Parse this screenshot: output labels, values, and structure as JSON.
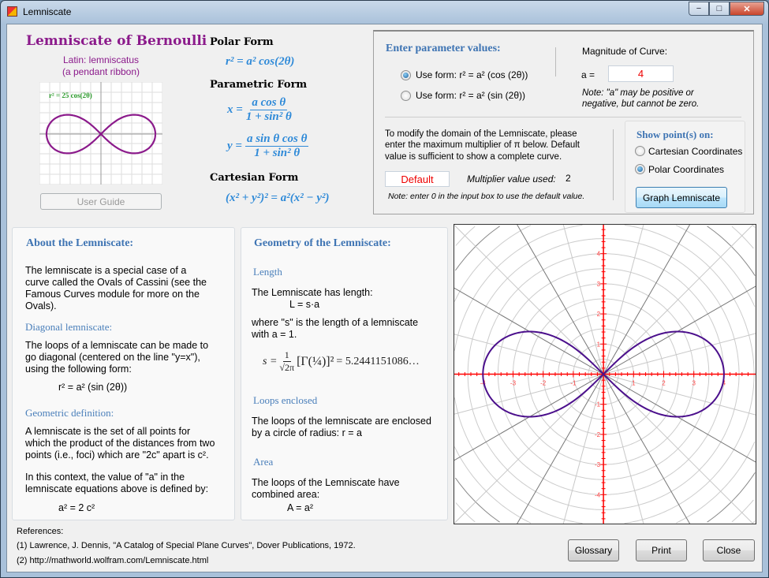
{
  "window": {
    "title": "Lemniscate",
    "minimize": "−",
    "maximize": "□",
    "close": "✕"
  },
  "intro": {
    "title": "Lemniscate of Bernoulli",
    "latin": "Latin: lemniscatus",
    "meaning": "(a pendant ribbon)",
    "thumbnail_label": "r² = 25 cos(2θ)",
    "user_guide": "User Guide"
  },
  "forms": {
    "polar_title": "Polar Form",
    "polar": "r² = a² cos(2θ)",
    "parametric_title": "Parametric Form",
    "x_lhs": "x =",
    "x_num": "a  cos θ",
    "x_den": "1 + sin² θ",
    "y_lhs": "y =",
    "y_num": "a  sin θ  cos θ",
    "y_den": "1 + sin² θ",
    "cartesian_title": "Cartesian Form",
    "cartesian": "(x² + y²)² = a²(x² − y²)"
  },
  "params": {
    "title": "Enter parameter values:",
    "form_cos": "Use form:  r² = a² (cos (2θ))",
    "form_sin": "Use form:  r² = a² (sin (2θ))",
    "selected_form": "cos",
    "magnitude_label": "Magnitude of Curve:",
    "a_label": "a =",
    "a_value": "4",
    "a_note1": "Note: \"a\" may be positive or",
    "a_note2": "negative, but cannot be zero.",
    "domain_text1": "To modify the domain of the Lemniscate, please",
    "domain_text2": "enter the maximum multiplier of π below.  Default",
    "domain_text3": "value is sufficient to show a complete curve.",
    "multiplier_input": "Default",
    "multiplier_label": "Multiplier value used:",
    "multiplier_value": "2",
    "multiplier_note": "Note: enter 0 in the input box to use the default value.",
    "show_title": "Show point(s) on:",
    "opt_cartesian": "Cartesian Coordinates",
    "opt_polar": "Polar Coordinates",
    "selected_coords": "polar",
    "graph_button": "Graph Lemniscate"
  },
  "about": {
    "title": "About the Lemniscate:",
    "p1": [
      "The lemniscate is a special case of a",
      "curve called the Ovals of Cassini (see the",
      "Famous Curves module for more on the",
      "Ovals)."
    ],
    "diag_title": "Diagonal lemniscate:",
    "p2": [
      "The loops of a lemniscate can be made to",
      "go diagonal (centered on the line  \"y=x\"),",
      "using the following form:"
    ],
    "diag_formula": "r² = a² (sin (2θ))",
    "geo_title": "Geometric definition:",
    "p3": [
      "A lemniscate is the set of all points for",
      "which the product of the distances from two",
      "points (i.e., foci) which are \"2c\" apart is c²."
    ],
    "p4": [
      "In this context, the value of \"a\" in the",
      "lemniscate equations above is defined by:"
    ],
    "a_formula": "a² = 2 c²"
  },
  "geometry": {
    "title": "Geometry of the Lemniscate:",
    "length_title": "Length",
    "length_text": "The Lemniscate has length:",
    "length_formula": "L = s·a",
    "s_text": [
      "where \"s\" is the length of a lemniscate",
      "with a = 1."
    ],
    "s_lhs": "s =",
    "s_num": "1",
    "s_den": "√2π",
    "s_gamma": "[Γ(¼)]²",
    "s_value": "= 5.2441151086…",
    "loops_title": "Loops enclosed",
    "loops_text": [
      "The loops of the lemniscate are enclosed",
      "by a circle of radius:  r = a"
    ],
    "area_title": "Area",
    "area_text": [
      "The loops of the Lemniscate have",
      "combined area:"
    ],
    "area_formula": "A = a²"
  },
  "references": {
    "title": "References:",
    "ref1": "(1) Lawrence, J. Dennis, \"A Catalog of Special Plane Curves\", Dover Publications, 1972.",
    "ref2": "(2) http://mathworld.wolfram.com/Lemniscate.html"
  },
  "buttons": {
    "glossary": "Glossary",
    "print": "Print",
    "close": "Close"
  },
  "colors": {
    "curve": "#4b0f8c",
    "axis": "#ff0000",
    "title": "#8b1a8b",
    "math": "#2f8ad8"
  },
  "chart_data": {
    "type": "line",
    "coordinate_system": "polar",
    "equation": "r² = a² cos(2θ)",
    "a": 4,
    "theta_range_multiplier_of_pi": 2,
    "xlim": [
      -4.95,
      5.05
    ],
    "ylim": [
      -4.95,
      4.95
    ],
    "x_ticks": [
      -4,
      -3,
      -2,
      -1,
      1,
      2,
      3,
      4
    ],
    "y_ticks": [
      -4,
      -3,
      -2,
      -1,
      1,
      2,
      3,
      4
    ],
    "minor_tick_step": 0.2,
    "grid": "polar",
    "radial_grid_step": 0.5,
    "angular_grid_step_deg": 15
  }
}
